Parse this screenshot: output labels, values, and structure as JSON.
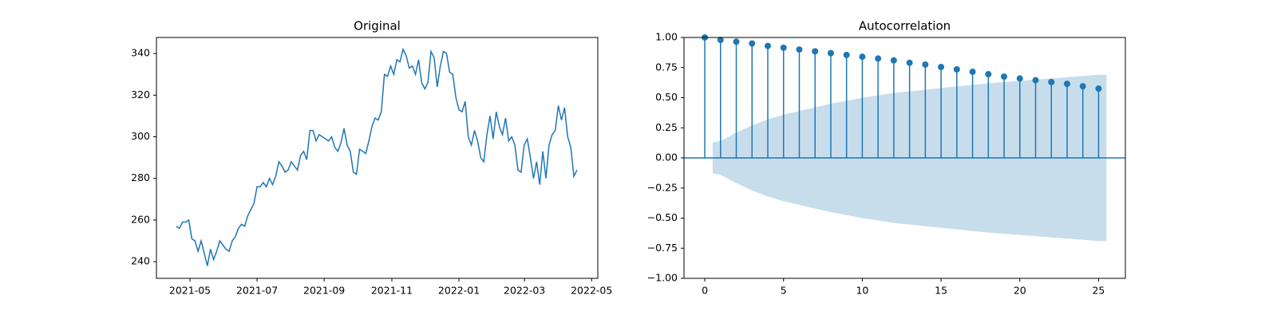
{
  "chart_data": [
    {
      "type": "line",
      "title": "Original",
      "color": "#1f77b4",
      "values": [
        257,
        256,
        259,
        259,
        260,
        251,
        250,
        245,
        250,
        244,
        238,
        246,
        241,
        245,
        250,
        248,
        246,
        245,
        250,
        252,
        256,
        258,
        257,
        262,
        265,
        268,
        276,
        276,
        278,
        276,
        280,
        277,
        281,
        288,
        286,
        283,
        284,
        288,
        286,
        284,
        291,
        293,
        289,
        303,
        303,
        298,
        301,
        300,
        299,
        298,
        300,
        295,
        293,
        297,
        304,
        296,
        293,
        283,
        282,
        294,
        293,
        292,
        298,
        305,
        309,
        308,
        312,
        330,
        329,
        334,
        330,
        337,
        336,
        342,
        339,
        333,
        334,
        330,
        337,
        326,
        323,
        326,
        341,
        338,
        324,
        334,
        341,
        340,
        331,
        330,
        319,
        313,
        312,
        317,
        300,
        296,
        303,
        298,
        290,
        288,
        301,
        310,
        299,
        312,
        305,
        301,
        309,
        298,
        300,
        296,
        284,
        283,
        296,
        299,
        290,
        280,
        288,
        277,
        293,
        280,
        296,
        301,
        303,
        315,
        308,
        314,
        300,
        295,
        281,
        284
      ],
      "xlim": [
        -6.4,
        135.7
      ],
      "xticks": [
        {
          "value": 4.4,
          "label": "2021-05"
        },
        {
          "value": 26.0,
          "label": "2021-07"
        },
        {
          "value": 47.6,
          "label": "2021-09"
        },
        {
          "value": 69.4,
          "label": "2021-11"
        },
        {
          "value": 91.0,
          "label": "2022-01"
        },
        {
          "value": 112.1,
          "label": "2022-03"
        },
        {
          "value": 133.7,
          "label": "2022-05"
        }
      ],
      "ylim": [
        232,
        347.7
      ],
      "yticks": [
        240,
        260,
        280,
        300,
        320,
        340
      ]
    },
    {
      "type": "stem",
      "title": "Autocorrelation",
      "color": "#1f77b4",
      "x": [
        0,
        1,
        2,
        3,
        4,
        5,
        6,
        7,
        8,
        9,
        10,
        11,
        12,
        13,
        14,
        15,
        16,
        17,
        18,
        19,
        20,
        21,
        22,
        23,
        24,
        25
      ],
      "values": [
        1.0,
        0.98,
        0.965,
        0.95,
        0.93,
        0.915,
        0.9,
        0.885,
        0.87,
        0.855,
        0.84,
        0.825,
        0.81,
        0.79,
        0.775,
        0.755,
        0.735,
        0.715,
        0.695,
        0.675,
        0.66,
        0.645,
        0.63,
        0.615,
        0.595,
        0.575
      ],
      "confidence_band": {
        "x": [
          0.5,
          1,
          2,
          3,
          4,
          5,
          6,
          8,
          10,
          12,
          15,
          18,
          20,
          22,
          25,
          25.5
        ],
        "values": [
          0.13,
          0.14,
          0.21,
          0.27,
          0.32,
          0.36,
          0.39,
          0.45,
          0.5,
          0.54,
          0.58,
          0.62,
          0.64,
          0.66,
          0.69,
          0.69
        ]
      },
      "xlim": [
        -1.32,
        26.7
      ],
      "xticks": [
        0,
        5,
        10,
        15,
        20,
        25
      ],
      "ylim": [
        -1,
        1
      ],
      "yticks": [
        {
          "value": -1,
          "label": "−1.00"
        },
        {
          "value": -0.75,
          "label": "−0.75"
        },
        {
          "value": -0.5,
          "label": "−0.50"
        },
        {
          "value": -0.25,
          "label": "−0.25"
        },
        {
          "value": 0,
          "label": "0.00"
        },
        {
          "value": 0.25,
          "label": "0.25"
        },
        {
          "value": 0.5,
          "label": "0.50"
        },
        {
          "value": 0.75,
          "label": "0.75"
        },
        {
          "value": 1,
          "label": "1.00"
        }
      ]
    }
  ]
}
